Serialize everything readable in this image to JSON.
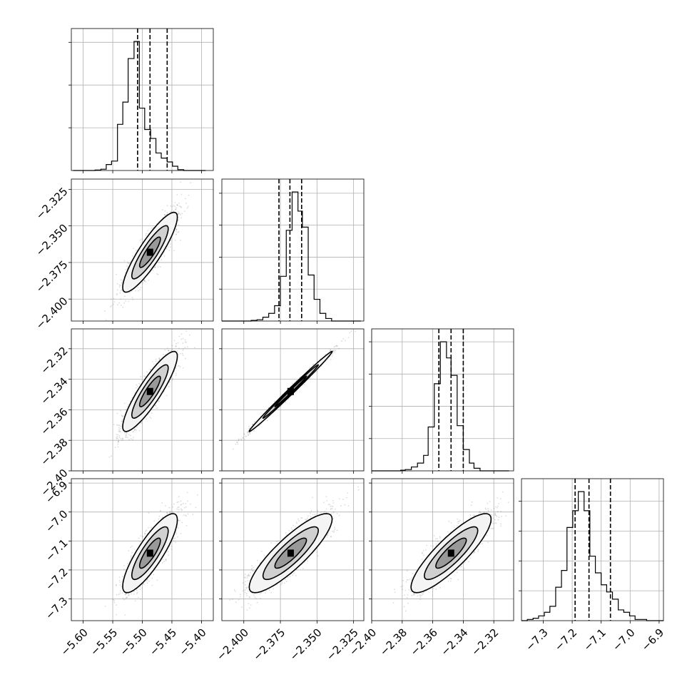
{
  "chart_data": {
    "type": "corner",
    "title": "",
    "grid": true,
    "colors": {
      "line": "#000000",
      "grid": "#b0b0b0",
      "scatter": "#808080",
      "level_outer": "#f4f4f4",
      "level_mid": "#d0d0d0",
      "level_inner": "#999999",
      "level_core": "#000000"
    },
    "parameters": [
      {
        "index": 0,
        "range": [
          -5.62,
          -5.38
        ],
        "ticks": [
          -5.6,
          -5.55,
          -5.5,
          -5.45,
          -5.4
        ],
        "tick_labels": [
          "−5.60",
          "−5.55",
          "−5.50",
          "−5.45",
          "−5.40"
        ]
      },
      {
        "index": 1,
        "range": [
          -2.415,
          -2.318
        ],
        "ticks": [
          -2.4,
          -2.375,
          -2.35,
          -2.325
        ],
        "tick_labels": [
          "−2.400",
          "−2.375",
          "−2.350",
          "−2.325"
        ]
      },
      {
        "index": 2,
        "range": [
          -2.4,
          -2.307
        ],
        "ticks": [
          -2.4,
          -2.38,
          -2.36,
          -2.34,
          -2.32
        ],
        "tick_labels": [
          "−2.40",
          "−2.38",
          "−2.36",
          "−2.34",
          "−2.32"
        ]
      },
      {
        "index": 3,
        "range": [
          -7.375,
          -6.885
        ],
        "ticks": [
          -7.3,
          -7.2,
          -7.1,
          -7.0,
          -6.9
        ],
        "tick_labels": [
          "−7.3",
          "−7.2",
          "−7.1",
          "−7.0",
          "−6.9"
        ]
      }
    ],
    "histograms": [
      {
        "param": 0,
        "bins": [
          -5.617,
          -5.608,
          -5.598,
          -5.589,
          -5.58,
          -5.57,
          -5.561,
          -5.552,
          -5.542,
          -5.533,
          -5.524,
          -5.514,
          -5.505,
          -5.496,
          -5.486,
          -5.477,
          -5.468,
          -5.458,
          -5.449,
          -5.44,
          -5.43,
          -5.421,
          -5.412,
          -5.402,
          -5.393
        ],
        "counts": [
          0,
          0,
          0,
          0,
          1,
          3,
          14,
          22,
          108,
          160,
          262,
          302,
          146,
          96,
          75,
          41,
          29,
          20,
          10,
          2,
          0,
          0,
          0,
          0
        ],
        "quantiles": [
          -5.508,
          -5.487,
          -5.458
        ]
      },
      {
        "param": 1,
        "bins": [
          -2.415,
          -2.411,
          -2.407,
          -2.403,
          -2.399,
          -2.395,
          -2.391,
          -2.387,
          -2.383,
          -2.379,
          -2.375,
          -2.371,
          -2.367,
          -2.363,
          -2.36,
          -2.356,
          -2.352,
          -2.348,
          -2.344,
          -2.34,
          -2.336,
          -2.332,
          -2.328,
          -2.324,
          -2.32
        ],
        "counts": [
          0,
          0,
          0,
          0,
          0,
          1,
          2,
          6,
          12,
          24,
          70,
          142,
          202,
          172,
          147,
          72,
          34,
          12,
          4,
          0,
          0,
          0,
          0,
          0
        ],
        "quantiles": [
          -2.376,
          -2.3685,
          -2.3605
        ]
      },
      {
        "param": 2,
        "bins": [
          -2.4,
          -2.396,
          -2.393,
          -2.389,
          -2.385,
          -2.381,
          -2.378,
          -2.374,
          -2.37,
          -2.366,
          -2.363,
          -2.359,
          -2.355,
          -2.351,
          -2.348,
          -2.344,
          -2.34,
          -2.336,
          -2.333,
          -2.329,
          -2.325,
          -2.322,
          -2.318,
          -2.314,
          -2.31
        ],
        "counts": [
          0,
          0,
          0,
          0,
          0,
          1,
          2,
          6,
          12,
          24,
          68,
          135,
          200,
          175,
          148,
          70,
          33,
          12,
          4,
          0,
          0,
          0,
          0,
          0
        ],
        "quantiles": [
          -2.356,
          -2.348,
          -2.34
        ]
      },
      {
        "param": 3,
        "bins": [
          -7.375,
          -7.355,
          -7.335,
          -7.316,
          -7.296,
          -7.277,
          -7.257,
          -7.237,
          -7.218,
          -7.198,
          -7.179,
          -7.159,
          -7.139,
          -7.12,
          -7.1,
          -7.081,
          -7.061,
          -7.041,
          -7.022,
          -7.002,
          -6.983,
          -6.963,
          -6.943,
          -6.924,
          -6.904,
          -6.885
        ],
        "counts": [
          0,
          1,
          2,
          4,
          7,
          12,
          28,
          42,
          78,
          92,
          108,
          92,
          54,
          40,
          30,
          24,
          18,
          9,
          7,
          4,
          1,
          1,
          0,
          0,
          0
        ],
        "quantiles": [
          -7.19,
          -7.142,
          -7.068
        ]
      }
    ],
    "pairs": [
      {
        "x_param": 0,
        "y_param": 1,
        "center": [
          -5.487,
          -2.368
        ],
        "sd": [
          0.022,
          0.013
        ],
        "corr": 0.88
      },
      {
        "x_param": 0,
        "y_param": 2,
        "center": [
          -5.487,
          -2.348
        ],
        "sd": [
          0.022,
          0.0125
        ],
        "corr": 0.88
      },
      {
        "x_param": 1,
        "y_param": 2,
        "center": [
          -2.368,
          -2.348
        ],
        "sd": [
          0.0135,
          0.0125
        ],
        "corr": 0.995
      },
      {
        "x_param": 0,
        "y_param": 3,
        "center": [
          -5.487,
          -7.142
        ],
        "sd": [
          0.022,
          0.065
        ],
        "corr": 0.84
      },
      {
        "x_param": 1,
        "y_param": 3,
        "center": [
          -2.368,
          -7.142
        ],
        "sd": [
          0.0135,
          0.065
        ],
        "corr": 0.86
      },
      {
        "x_param": 2,
        "y_param": 3,
        "center": [
          -2.348,
          -7.142
        ],
        "sd": [
          0.0125,
          0.065
        ],
        "corr": 0.86
      }
    ]
  }
}
